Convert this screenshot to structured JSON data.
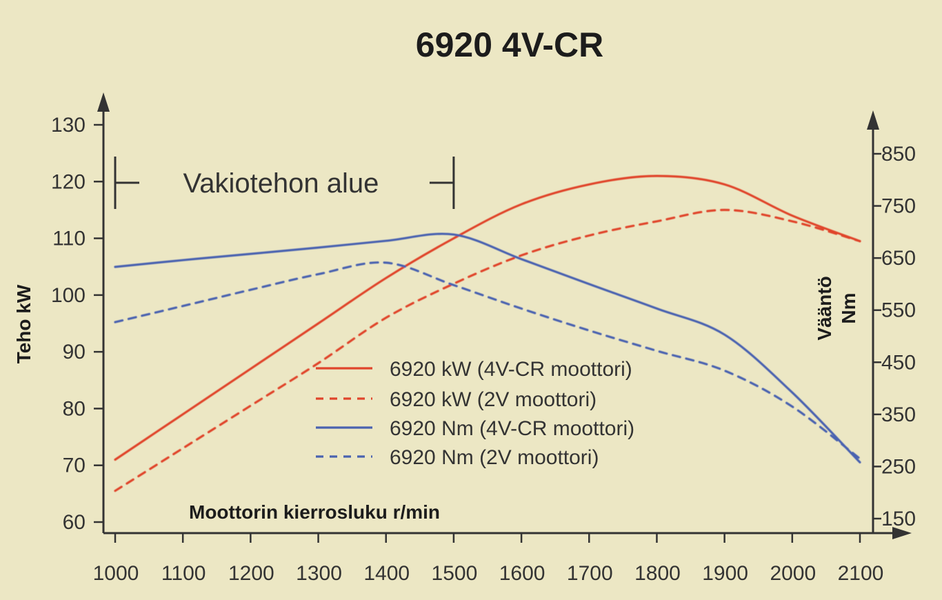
{
  "chart_data": {
    "type": "line",
    "title": "6920 4V-CR",
    "xlabel": "Moottorin kierrosluku r/min",
    "ylabel_left": "Teho kW",
    "ylabel_right_line1": "Vääntö",
    "ylabel_right_line2": "Nm",
    "xlim": [
      1000,
      2100
    ],
    "ylim_left": [
      60,
      130
    ],
    "ylim_right": [
      150,
      850
    ],
    "x_ticks": [
      1000,
      1100,
      1200,
      1300,
      1400,
      1500,
      1600,
      1700,
      1800,
      1900,
      2000,
      2100
    ],
    "y_left_ticks": [
      60,
      70,
      80,
      90,
      100,
      110,
      120,
      130
    ],
    "y_right_ticks": [
      150,
      250,
      350,
      450,
      550,
      650,
      750,
      850
    ],
    "band": {
      "label": "Vakiotehon alue",
      "x_start": 1000,
      "x_end": 1500
    },
    "legend_position": "center",
    "series": [
      {
        "name": "6920 kW (4V-CR moottori)",
        "axis": "left",
        "color": "#e0452c",
        "dash": false,
        "x": [
          1000,
          1100,
          1200,
          1300,
          1400,
          1500,
          1600,
          1700,
          1800,
          1900,
          2000,
          2100
        ],
        "y": [
          71,
          79,
          87,
          95,
          103,
          110,
          116,
          119.5,
          121,
          119.5,
          114,
          109.5
        ]
      },
      {
        "name": "6920 kW (2V moottori)",
        "axis": "left",
        "color": "#e0452c",
        "dash": true,
        "x": [
          1000,
          1100,
          1200,
          1300,
          1400,
          1500,
          1600,
          1700,
          1800,
          1900,
          2000,
          2100
        ],
        "y": [
          65.5,
          73,
          80.5,
          88,
          96,
          102,
          107,
          110.5,
          113,
          115,
          113,
          109.5
        ]
      },
      {
        "name": "6920 Nm (4V-CR moottori)",
        "axis": "right",
        "color": "#4a62b0",
        "dash": false,
        "x": [
          1000,
          1100,
          1200,
          1300,
          1400,
          1500,
          1600,
          1700,
          1800,
          1900,
          2000,
          2100
        ],
        "y": [
          633,
          646,
          658,
          670,
          683,
          695,
          648,
          600,
          553,
          503,
          392,
          258
        ]
      },
      {
        "name": "6920 Nm (2V moottori)",
        "axis": "right",
        "color": "#4a62b0",
        "dash": true,
        "x": [
          1000,
          1100,
          1200,
          1300,
          1400,
          1500,
          1600,
          1700,
          1800,
          1900,
          2000,
          2100
        ],
        "y": [
          527,
          558,
          589,
          619,
          641,
          598,
          553,
          511,
          472,
          434,
          365,
          265
        ]
      }
    ]
  }
}
